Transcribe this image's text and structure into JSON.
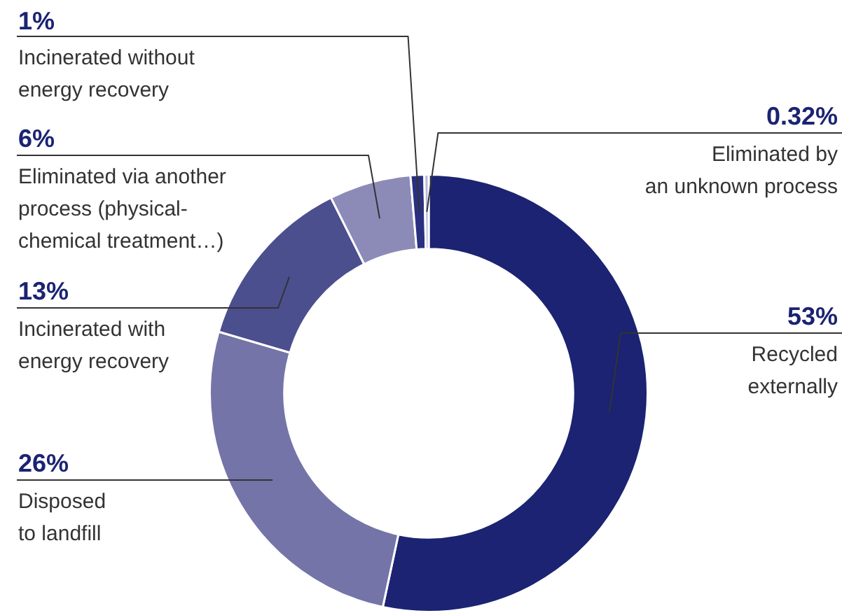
{
  "chart_data": {
    "type": "donut",
    "categories": [
      "Recycled\nexternally",
      "Disposed\nto landfill",
      "Incinerated with\nenergy recovery",
      "Eliminated via another\nprocess (physical-\nchemical treatment…)",
      "Incinerated without\nenergy recovery",
      "Eliminated by\nan unknown process"
    ],
    "values": [
      53,
      26,
      13,
      6,
      1,
      0.32
    ],
    "value_labels": [
      "53%",
      "26%",
      "13%",
      "6%",
      "1%",
      "0.32%"
    ],
    "colors": [
      "#1b2372",
      "#7474a8",
      "#4b4f8e",
      "#8c8bb8",
      "#2a3080",
      "#b8bad8"
    ],
    "legend": false
  }
}
